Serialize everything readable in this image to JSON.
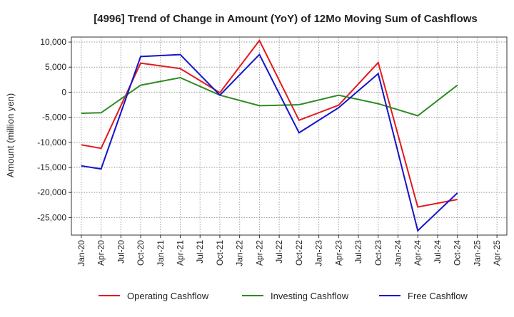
{
  "chart_data": {
    "type": "line",
    "title": "[4996]  Trend of Change in Amount (YoY) of 12Mo Moving Sum of Cashflows",
    "xlabel": "",
    "ylabel": "Amount (million yen)",
    "ylim": [
      -28500,
      11000
    ],
    "grid": true,
    "legend_position": "bottom",
    "categories": [
      "Jan-20",
      "Apr-20",
      "Jul-20",
      "Oct-20",
      "Jan-21",
      "Apr-21",
      "Jul-21",
      "Oct-21",
      "Jan-22",
      "Apr-22",
      "Jul-22",
      "Oct-22",
      "Jan-23",
      "Apr-23",
      "Jul-23",
      "Oct-23",
      "Jan-24",
      "Apr-24",
      "Jul-24",
      "Oct-24",
      "Jan-25",
      "Apr-25"
    ],
    "yticks": [
      10000,
      5000,
      0,
      -5000,
      -10000,
      -15000,
      -20000,
      -25000
    ],
    "ytick_labels": [
      "10,000",
      "5,000",
      "0",
      "-5,000",
      "-10,000",
      "-15,000",
      "-20,000",
      "-25,000"
    ],
    "series": [
      {
        "name": "Operating Cashflow",
        "color": "#e31a1c",
        "values": [
          -10500,
          -11200,
          null,
          5800,
          null,
          4700,
          null,
          -100,
          null,
          10300,
          null,
          -5600,
          null,
          -2600,
          null,
          5900,
          null,
          -22900,
          null,
          -21400,
          null,
          null
        ]
      },
      {
        "name": "Investing Cashflow",
        "color": "#2e8b22",
        "values": [
          -4200,
          -4100,
          null,
          1400,
          null,
          2900,
          null,
          -600,
          null,
          -2700,
          null,
          -2500,
          null,
          -600,
          null,
          -2300,
          null,
          -4700,
          null,
          1400,
          null,
          null
        ]
      },
      {
        "name": "Free Cashflow",
        "color": "#1414cc",
        "values": [
          -14700,
          -15300,
          null,
          7100,
          null,
          7500,
          null,
          -600,
          null,
          7500,
          null,
          -8100,
          null,
          -3100,
          null,
          3700,
          null,
          -27600,
          null,
          -20100,
          null,
          null
        ]
      }
    ]
  }
}
